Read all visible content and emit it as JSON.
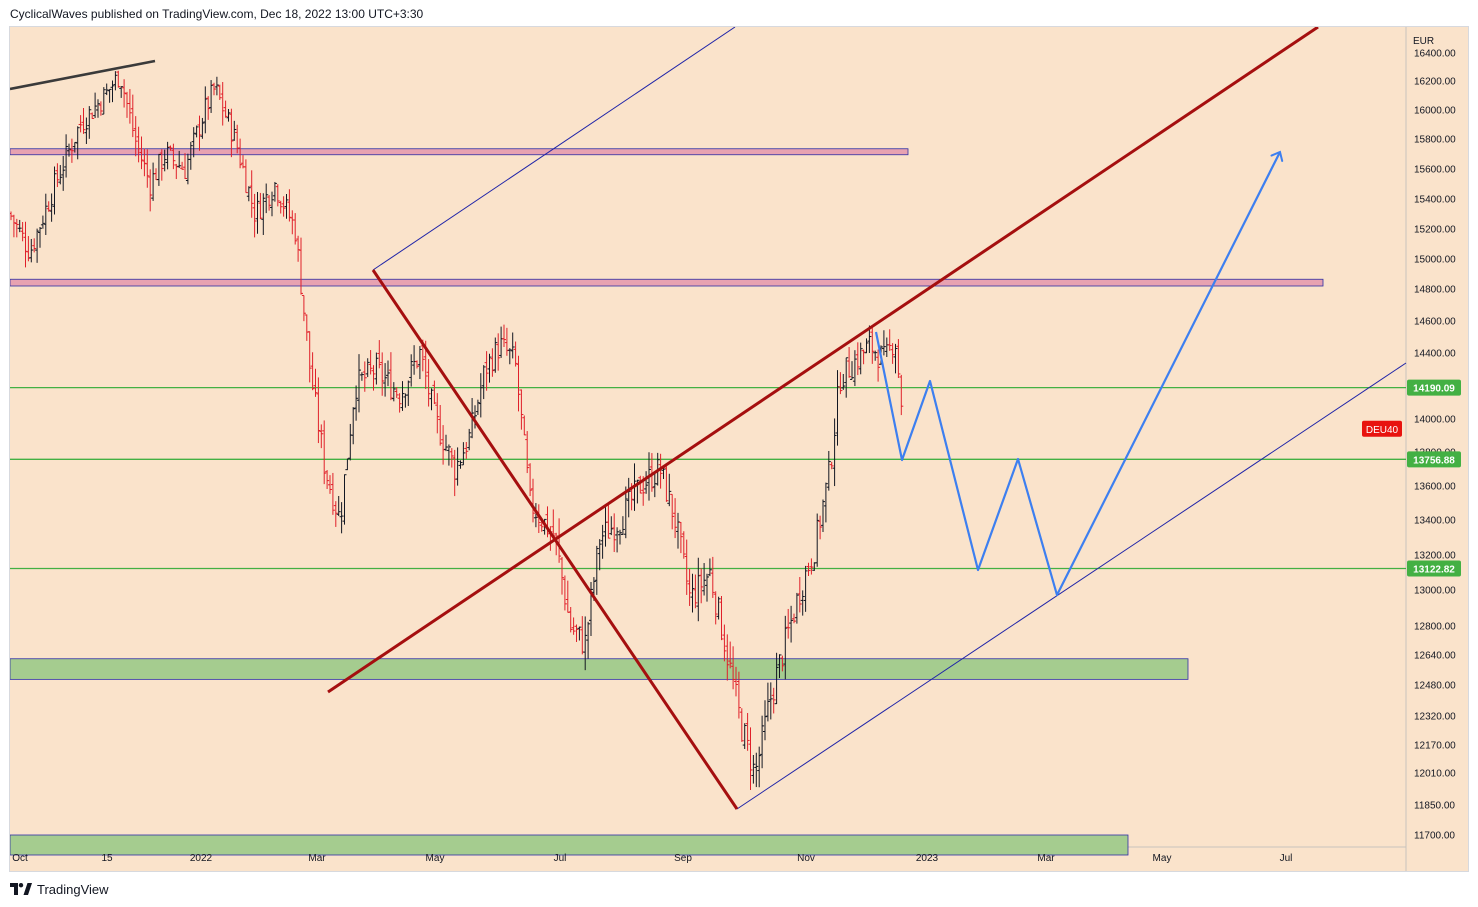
{
  "header": {
    "published_by": "CyclicalWaves published on TradingView.com, Dec 18, 2022 13:00 UTC+3:30"
  },
  "footer": {
    "brand": "TradingView",
    "logo_icon": "tradingview-logo-icon"
  },
  "colors": {
    "background": "#fae3cb",
    "candle_up": "#131722",
    "candle_down": "#e0202a",
    "channel_dark_red": "#a50f0f",
    "channel_blue": "#1f24a8",
    "projection_blue": "#3d7ff0",
    "support_green": "#43b043",
    "zone_green": "#a5cc8f",
    "zone_pink": "#e7a2b1",
    "price_label_green": "#43b043",
    "symbol_badge_red": "#e8130f",
    "trend_black": "#3a3a3a"
  },
  "chart_data": {
    "type": "ohlc_bar",
    "symbol": "DEU40",
    "currency": "EUR",
    "x_axis": {
      "tick_labels": [
        "Oct",
        "15",
        "2022",
        "Mar",
        "May",
        "Jul",
        "Sep",
        "Nov",
        "2023",
        "Mar",
        "May",
        "Jul"
      ]
    },
    "y_axis": {
      "tick_labels": [
        "16400.00",
        "16200.00",
        "16000.00",
        "15800.00",
        "15600.00",
        "15400.00",
        "15200.00",
        "15000.00",
        "14800.00",
        "14600.00",
        "14400.00",
        "14000.00",
        "13800.00",
        "13600.00",
        "13400.00",
        "13200.00",
        "13000.00",
        "12800.00",
        "12640.00",
        "12480.00",
        "12320.00",
        "12170.00",
        "12010.00",
        "11850.00",
        "11700.00"
      ],
      "unit": "EUR"
    },
    "horizontal_levels": [
      {
        "value": 14190.09,
        "label": "14190.09"
      },
      {
        "value": 13756.88,
        "label": "13756.88"
      },
      {
        "value": 13122.82,
        "label": "13122.82"
      }
    ],
    "symbol_badge": {
      "label": "DEU40",
      "value": 14050
    },
    "zones": [
      {
        "kind": "resistance",
        "low": 15695,
        "high": 15735
      },
      {
        "kind": "resistance",
        "low": 14820,
        "high": 14865
      },
      {
        "kind": "support",
        "low": 12510,
        "high": 12620
      },
      {
        "kind": "support",
        "low": 11600,
        "high": 11700
      }
    ],
    "projection_points": [
      {
        "date": "2022-12-15",
        "price": 14550
      },
      {
        "date": "2022-12-20",
        "price": 13760
      },
      {
        "date": "2022-12-28",
        "price": 14250
      },
      {
        "date": "2023-01-28",
        "price": 13120
      },
      {
        "date": "2023-02-16",
        "price": 13760
      },
      {
        "date": "2023-03-08",
        "price": 12980
      },
      {
        "date": "2023-07-07",
        "price": 15700
      }
    ],
    "ohlc_series": "approximate daily OHLC bars from Oct 2021 to Dec 2022"
  }
}
